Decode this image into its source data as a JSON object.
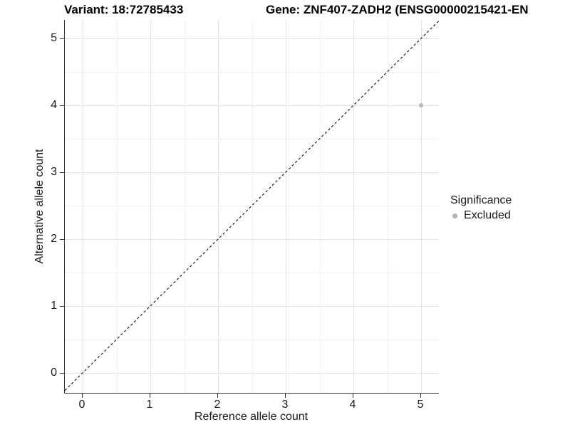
{
  "titles": {
    "variant": "Variant: 18:72785433",
    "gene": "Gene: ZNF407-ZADH2 (ENSG00000215421-EN"
  },
  "chart_data": {
    "type": "scatter",
    "title": "Variant: 18:72785433 — Gene: ZNF407-ZADH2 (ENSG00000215421-EN",
    "xlabel": "Reference allele count",
    "ylabel": "Alternative allele count",
    "x_ticks": [
      0,
      1,
      2,
      3,
      4,
      5
    ],
    "y_ticks": [
      0,
      1,
      2,
      3,
      4,
      5
    ],
    "xlim": [
      -0.26,
      5.26
    ],
    "ylim": [
      -0.26,
      5.26
    ],
    "grid": "major and minor, light gray on white",
    "points": [
      {
        "x": 5,
        "y": 4,
        "series": "Excluded"
      }
    ],
    "reference_line": {
      "type": "identity y=x",
      "style": "dashed",
      "color": "#111111"
    },
    "legend": {
      "position": "right",
      "title": "Significance",
      "items": [
        {
          "label": "Excluded",
          "color": "#b3b3b3",
          "marker": "circle"
        }
      ]
    }
  },
  "colors": {
    "background": "#ffffff",
    "point": "#b9b9b9",
    "grid_major": "#e3e3e3",
    "grid_minor": "#f1f1f1",
    "axis_line": "#333333",
    "text": "#1a1a1a"
  }
}
